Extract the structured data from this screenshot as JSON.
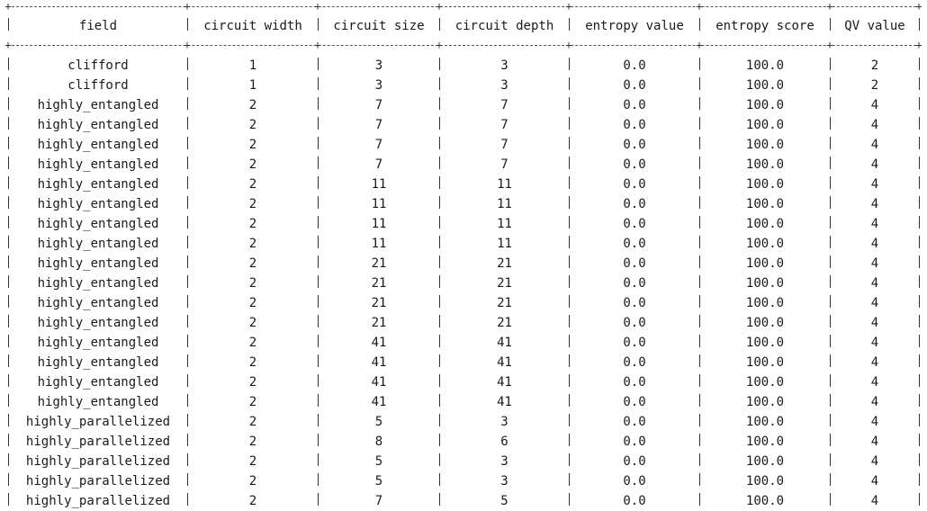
{
  "table": {
    "columns": [
      "field",
      "circuit width",
      "circuit size",
      "circuit depth",
      "entropy value",
      "entropy score",
      "QV value"
    ],
    "rows": [
      [
        "clifford",
        "1",
        "3",
        "3",
        "0.0",
        "100.0",
        "2"
      ],
      [
        "clifford",
        "1",
        "3",
        "3",
        "0.0",
        "100.0",
        "2"
      ],
      [
        "highly_entangled",
        "2",
        "7",
        "7",
        "0.0",
        "100.0",
        "4"
      ],
      [
        "highly_entangled",
        "2",
        "7",
        "7",
        "0.0",
        "100.0",
        "4"
      ],
      [
        "highly_entangled",
        "2",
        "7",
        "7",
        "0.0",
        "100.0",
        "4"
      ],
      [
        "highly_entangled",
        "2",
        "7",
        "7",
        "0.0",
        "100.0",
        "4"
      ],
      [
        "highly_entangled",
        "2",
        "11",
        "11",
        "0.0",
        "100.0",
        "4"
      ],
      [
        "highly_entangled",
        "2",
        "11",
        "11",
        "0.0",
        "100.0",
        "4"
      ],
      [
        "highly_entangled",
        "2",
        "11",
        "11",
        "0.0",
        "100.0",
        "4"
      ],
      [
        "highly_entangled",
        "2",
        "11",
        "11",
        "0.0",
        "100.0",
        "4"
      ],
      [
        "highly_entangled",
        "2",
        "21",
        "21",
        "0.0",
        "100.0",
        "4"
      ],
      [
        "highly_entangled",
        "2",
        "21",
        "21",
        "0.0",
        "100.0",
        "4"
      ],
      [
        "highly_entangled",
        "2",
        "21",
        "21",
        "0.0",
        "100.0",
        "4"
      ],
      [
        "highly_entangled",
        "2",
        "21",
        "21",
        "0.0",
        "100.0",
        "4"
      ],
      [
        "highly_entangled",
        "2",
        "41",
        "41",
        "0.0",
        "100.0",
        "4"
      ],
      [
        "highly_entangled",
        "2",
        "41",
        "41",
        "0.0",
        "100.0",
        "4"
      ],
      [
        "highly_entangled",
        "2",
        "41",
        "41",
        "0.0",
        "100.0",
        "4"
      ],
      [
        "highly_entangled",
        "2",
        "41",
        "41",
        "0.0",
        "100.0",
        "4"
      ],
      [
        "highly_parallelized",
        "2",
        "5",
        "3",
        "0.0",
        "100.0",
        "4"
      ],
      [
        "highly_parallelized",
        "2",
        "8",
        "6",
        "0.0",
        "100.0",
        "4"
      ],
      [
        "highly_parallelized",
        "2",
        "5",
        "3",
        "0.0",
        "100.0",
        "4"
      ],
      [
        "highly_parallelized",
        "2",
        "5",
        "3",
        "0.0",
        "100.0",
        "4"
      ],
      [
        "highly_parallelized",
        "2",
        "7",
        "5",
        "0.0",
        "100.0",
        "4"
      ]
    ]
  }
}
